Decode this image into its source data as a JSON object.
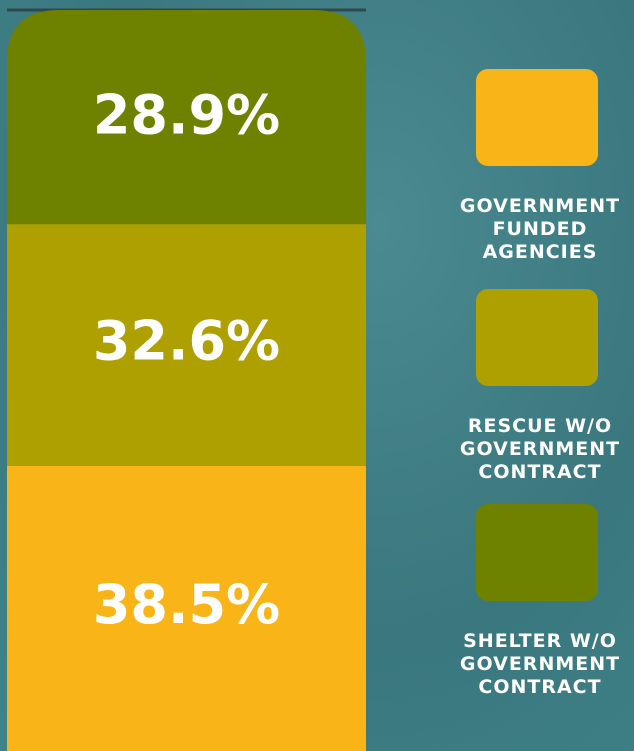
{
  "chart_data": {
    "type": "stacked-bar",
    "categories": [
      null
    ],
    "ylim": [
      0,
      100
    ],
    "series": [
      {
        "name": "GOVERNMENT FUNDED AGENCIES",
        "color": "#f9b418",
        "values": [
          38.5
        ],
        "value_labels": [
          "38.5%"
        ]
      },
      {
        "name": "RESCUE W/O GOVERNMENT CONTRACT",
        "color": "#ada000",
        "values": [
          32.6
        ],
        "value_labels": [
          "32.6%"
        ]
      },
      {
        "name": "SHELTER W/O GOVERNMENT CONTRACT",
        "color": "#6e8200",
        "values": [
          28.9
        ],
        "value_labels": [
          "28.9%"
        ]
      }
    ]
  }
}
